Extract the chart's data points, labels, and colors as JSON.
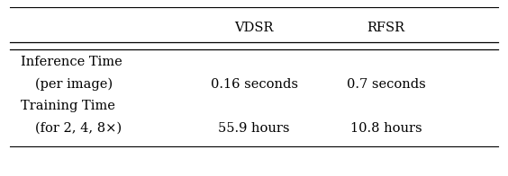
{
  "col_headers": [
    "",
    "VDSR",
    "RFSR"
  ],
  "row_labels": [
    "Inference Time\n(per image)",
    "Training Time\n(for 2, 4, 8×)"
  ],
  "row_data": [
    [
      "0.16 seconds",
      "0.7 seconds"
    ],
    [
      "55.9 hours",
      "10.8 hours"
    ]
  ],
  "font_size": 10.5,
  "bg_color": "#ffffff",
  "text_color": "#000000",
  "line_color": "#000000"
}
